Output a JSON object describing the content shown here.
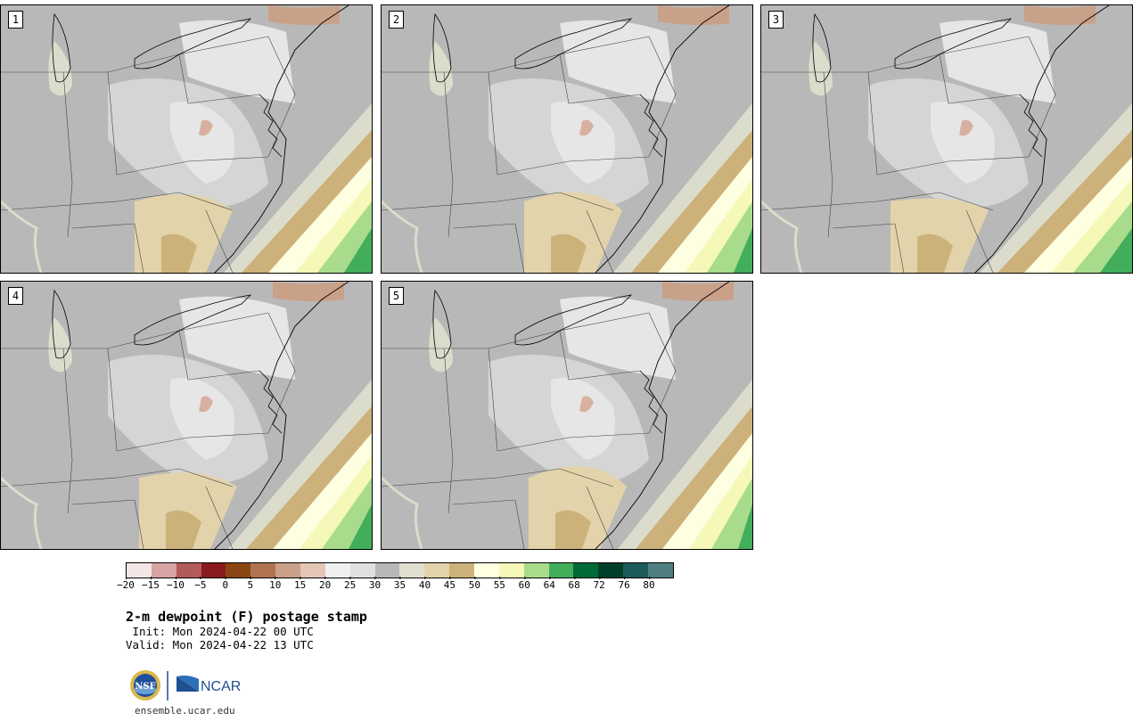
{
  "panels": [
    {
      "label": "1"
    },
    {
      "label": "2"
    },
    {
      "label": "3"
    },
    {
      "label": "4"
    },
    {
      "label": "5"
    }
  ],
  "colorbar": {
    "tick_labels": [
      "−20",
      "−15",
      "−10",
      "−5",
      "0",
      "5",
      "10",
      "15",
      "20",
      "25",
      "30",
      "35",
      "40",
      "45",
      "50",
      "55",
      "60",
      "64",
      "68",
      "72",
      "76",
      "80"
    ],
    "colors": [
      "#f3e6e6",
      "#d8a3a3",
      "#b35a5a",
      "#8b1a1f",
      "#8b4513",
      "#b07350",
      "#c9a088",
      "#e3c6b6",
      "#f0f0f0",
      "#e0e0e0",
      "#b8b8b8",
      "#e0dfd0",
      "#e3d3aa",
      "#ccb27a",
      "#fefee0",
      "#f5f8b8",
      "#a8dc8c",
      "#42ae5c",
      "#006a36",
      "#00402a",
      "#1d5a5a",
      "#4f7f7f"
    ]
  },
  "title": "2-m dewpoint (F) postage stamp",
  "init_line": " Init: Mon 2024-04-22 00 UTC",
  "valid_line": "Valid: Mon 2024-04-22 13 UTC",
  "logos": {
    "nsf_icon": "nsf-logo",
    "ncar_text": "NCAR"
  },
  "footer_url": "ensemble.ucar.edu"
}
